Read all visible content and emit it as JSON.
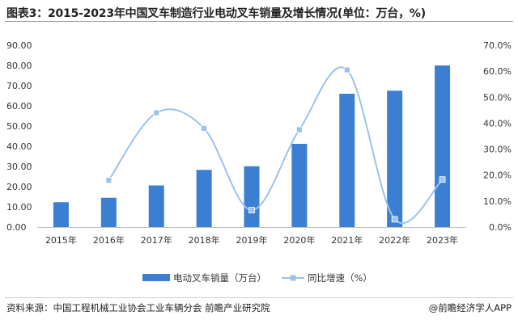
{
  "title": "图表3：2015-2023年中国叉车制造行业电动叉车销量及增长情况(单位：万台，%)",
  "source": "资料来源：中国工程机械工业协会工业车辆分会 前瞻产业研究院",
  "brand": "@前瞻经济学人APP",
  "colors": {
    "bar": "#3a7fd1",
    "line": "#9cc2ec",
    "marker": "#9cc2ec"
  },
  "chart_data": {
    "type": "bar",
    "categories": [
      "2015年",
      "2016年",
      "2017年",
      "2018年",
      "2019年",
      "2020年",
      "2021年",
      "2022年",
      "2023年"
    ],
    "series": [
      {
        "name": "电动叉车销量（万台）",
        "type": "bar",
        "axis": "left",
        "values": [
          12.3,
          14.5,
          20.6,
          28.3,
          30.1,
          41.2,
          66.0,
          67.5,
          80.0
        ]
      },
      {
        "name": "同比增速（%）",
        "type": "line",
        "axis": "right",
        "smooth": true,
        "values": [
          null,
          18.0,
          44.0,
          38.0,
          6.5,
          37.5,
          60.5,
          3.0,
          18.3
        ]
      }
    ],
    "y_left": {
      "min": 0,
      "max": 90,
      "step": 10,
      "ticks": [
        "0.00",
        "10.00",
        "20.00",
        "30.00",
        "40.00",
        "50.00",
        "60.00",
        "70.00",
        "80.00",
        "90.00"
      ]
    },
    "y_right": {
      "min": 0,
      "max": 70,
      "step": 10,
      "ticks": [
        "0.0%",
        "10.0%",
        "20.0%",
        "30.0%",
        "40.0%",
        "50.0%",
        "60.0%",
        "70.0%"
      ]
    },
    "grid": false,
    "legend": "bottom-center"
  }
}
